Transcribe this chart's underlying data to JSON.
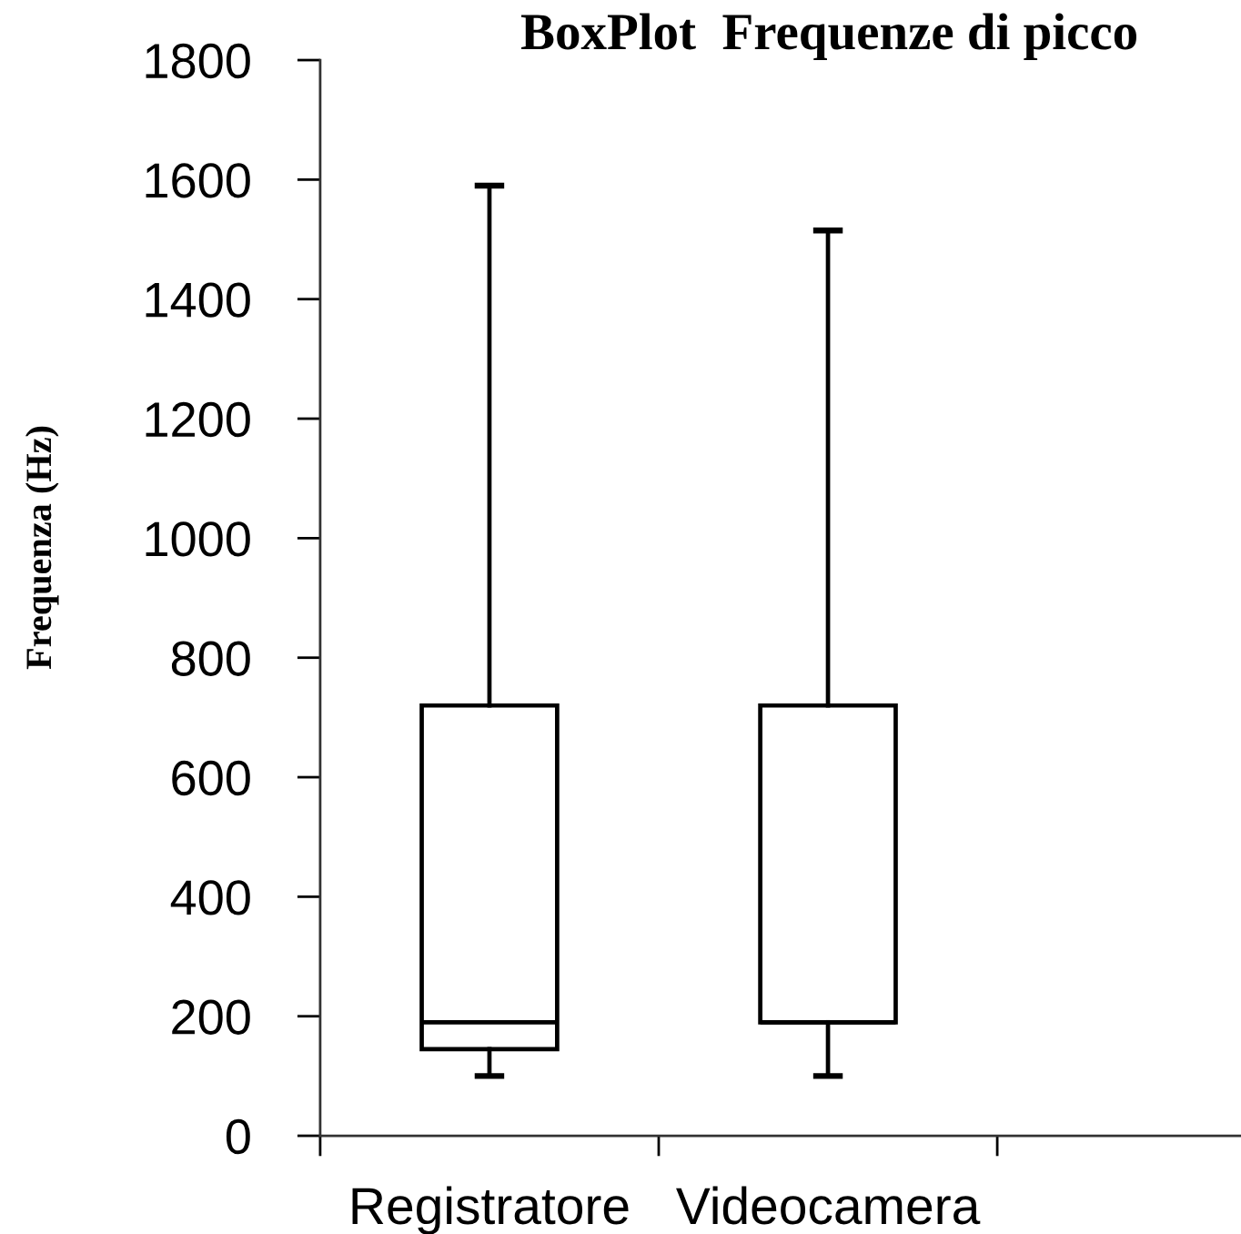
{
  "chart_data": {
    "type": "box",
    "title": "BoxPlot  Frequenze di picco",
    "ylabel": "Frequenza (Hz)",
    "categories": [
      "Registratore",
      "Videocamera"
    ],
    "boxes": [
      {
        "low": 100,
        "q1": 145,
        "median": 190,
        "q3": 720,
        "high": 1590
      },
      {
        "low": 100,
        "q1": 190,
        "median": 190,
        "q3": 720,
        "high": 1515
      }
    ],
    "ylim": [
      0,
      1800
    ],
    "yticks": [
      0,
      200,
      400,
      600,
      800,
      1000,
      1200,
      1400,
      1600,
      1800
    ]
  }
}
